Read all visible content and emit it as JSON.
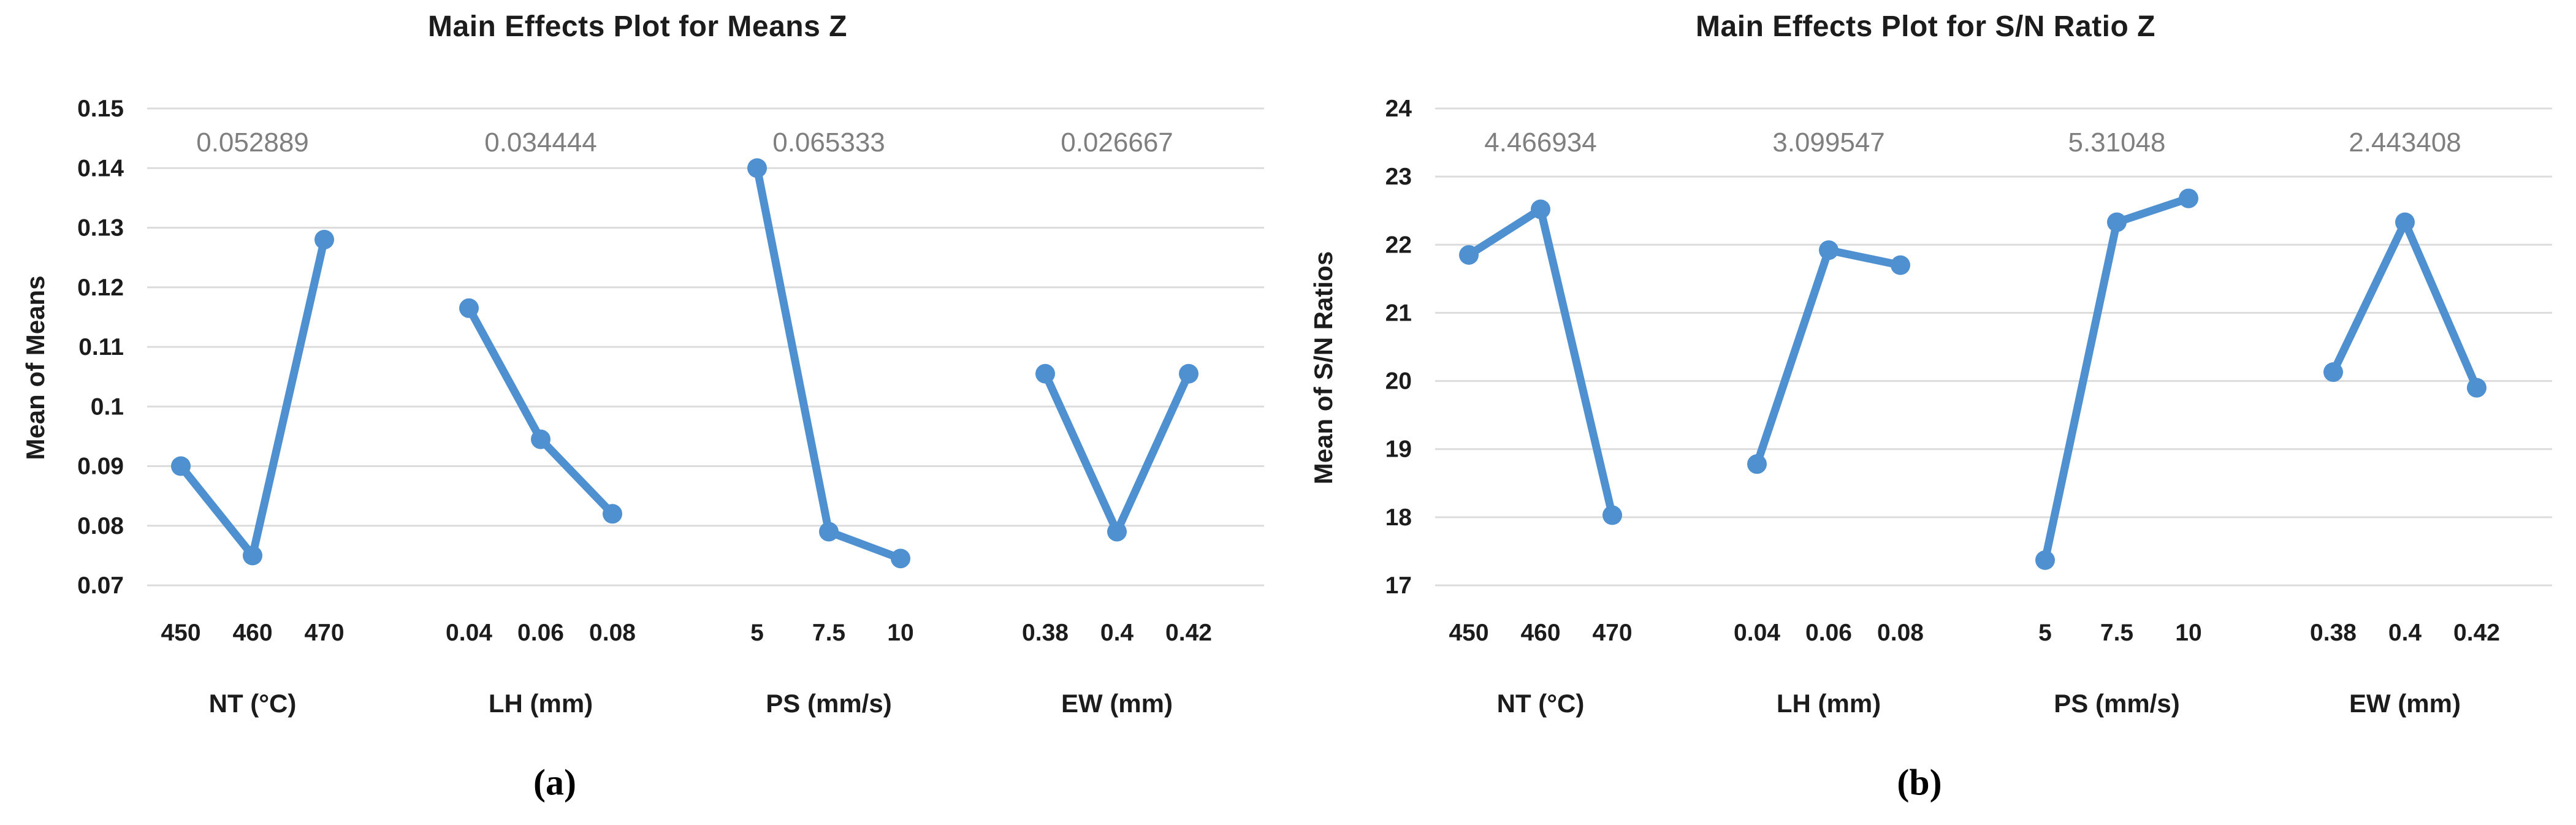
{
  "page": {
    "background_color": "#ffffff",
    "caption_a": "(a)",
    "caption_b": "(b)"
  },
  "styles": {
    "series_color": "#4E90D0",
    "gridline_color": "#DCDCDC",
    "annotation_color": "#7F7F7F",
    "text_color": "#1c1c1c"
  },
  "chart_data": [
    {
      "type": "line",
      "title": "Main Effects Plot for Means Z",
      "ylabel": "Mean of Means",
      "xlabel": "",
      "caption": "(a)",
      "ylim": [
        0.07,
        0.15
      ],
      "grid": true,
      "legend": "none",
      "ytick_labels": [
        "0.15",
        "0.14",
        "0.13",
        "0.12",
        "0.11",
        "0.1",
        "0.09",
        "0.08",
        "0.07"
      ],
      "panels": [
        {
          "factor": "NT (°C)",
          "effect_label": "0.052889",
          "categories": [
            "450",
            "460",
            "470"
          ],
          "values": [
            0.09,
            0.075,
            0.128
          ]
        },
        {
          "factor": "LH (mm)",
          "effect_label": "0.034444",
          "categories": [
            "0.04",
            "0.06",
            "0.08"
          ],
          "values": [
            0.1165,
            0.0945,
            0.082
          ]
        },
        {
          "factor": "PS (mm/s)",
          "effect_label": "0.065333",
          "categories": [
            "5",
            "7.5",
            "10"
          ],
          "values": [
            0.14,
            0.079,
            0.0745
          ]
        },
        {
          "factor": "EW (mm)",
          "effect_label": "0.026667",
          "categories": [
            "0.38",
            "0.4",
            "0.42"
          ],
          "values": [
            0.1055,
            0.079,
            0.1055
          ]
        }
      ]
    },
    {
      "type": "line",
      "title": "Main Effects Plot for S/N Ratio Z",
      "ylabel": "Mean of S/N Ratios",
      "xlabel": "",
      "caption": "(b)",
      "ylim": [
        17,
        24
      ],
      "grid": true,
      "legend": "none",
      "ytick_labels": [
        "24",
        "23",
        "22",
        "21",
        "20",
        "19",
        "18",
        "17"
      ],
      "panels": [
        {
          "factor": "NT (°C)",
          "effect_label": "4.466934",
          "categories": [
            "450",
            "460",
            "470"
          ],
          "values": [
            21.85,
            22.52,
            18.03
          ]
        },
        {
          "factor": "LH (mm)",
          "effect_label": "3.099547",
          "categories": [
            "0.04",
            "0.06",
            "0.08"
          ],
          "values": [
            18.78,
            21.92,
            21.7
          ]
        },
        {
          "factor": "PS (mm/s)",
          "effect_label": "5.31048",
          "categories": [
            "5",
            "7.5",
            "10"
          ],
          "values": [
            17.37,
            22.33,
            22.68
          ]
        },
        {
          "factor": "EW (mm)",
          "effect_label": "2.443408",
          "categories": [
            "0.38",
            "0.4",
            "0.42"
          ],
          "values": [
            20.13,
            22.33,
            19.9
          ]
        }
      ]
    }
  ]
}
